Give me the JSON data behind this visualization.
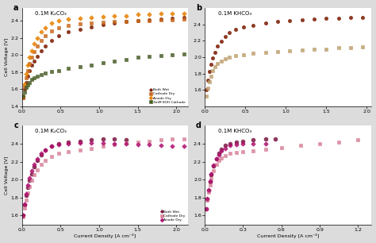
{
  "panels": [
    {
      "label": "a",
      "title": "0.1M K₂CO₃",
      "xlim": [
        0,
        2.15
      ],
      "ylim": [
        1.4,
        2.55
      ],
      "yticks": [
        1.4,
        1.6,
        1.8,
        2.0,
        2.2,
        2.4
      ],
      "xticks": [
        0.0,
        0.5,
        1.0,
        1.5,
        2.0
      ],
      "has_legend": true,
      "legend_loc": "lower right",
      "series": [
        {
          "label": "Both Wet",
          "marker": "o",
          "color": "#7B1A00",
          "mec": "#7B1A00",
          "markersize": 3.0,
          "x": [
            0.02,
            0.04,
            0.06,
            0.08,
            0.1,
            0.13,
            0.16,
            0.2,
            0.25,
            0.3,
            0.38,
            0.48,
            0.6,
            0.75,
            0.9,
            1.05,
            1.2,
            1.35,
            1.5,
            1.65,
            1.8,
            1.95,
            2.1
          ],
          "y": [
            1.5,
            1.6,
            1.68,
            1.75,
            1.82,
            1.88,
            1.93,
            1.98,
            2.05,
            2.1,
            2.17,
            2.22,
            2.27,
            2.3,
            2.33,
            2.35,
            2.37,
            2.39,
            2.4,
            2.41,
            2.42,
            2.43,
            2.44
          ]
        },
        {
          "label": "Cathode Dry",
          "marker": "s",
          "color": "#C8691E",
          "mec": "#C8691E",
          "markersize": 3.0,
          "x": [
            0.02,
            0.04,
            0.06,
            0.08,
            0.1,
            0.13,
            0.16,
            0.2,
            0.25,
            0.3,
            0.38,
            0.48,
            0.6,
            0.75,
            0.9,
            1.05,
            1.2,
            1.35,
            1.5,
            1.65,
            1.8,
            1.95,
            2.1
          ],
          "y": [
            1.5,
            1.63,
            1.73,
            1.82,
            1.9,
            1.97,
            2.04,
            2.1,
            2.17,
            2.22,
            2.28,
            2.32,
            2.34,
            2.36,
            2.37,
            2.38,
            2.39,
            2.39,
            2.4,
            2.4,
            2.41,
            2.41,
            2.42
          ]
        },
        {
          "label": "Anode Dry",
          "marker": "D",
          "color": "#E88000",
          "mec": "#E88000",
          "markersize": 2.8,
          "x": [
            0.02,
            0.04,
            0.06,
            0.08,
            0.1,
            0.13,
            0.16,
            0.2,
            0.25,
            0.3,
            0.38,
            0.48,
            0.6,
            0.75,
            0.9,
            1.05,
            1.2,
            1.35,
            1.5,
            1.65,
            1.8,
            1.95,
            2.1
          ],
          "y": [
            1.52,
            1.66,
            1.78,
            1.88,
            1.97,
            2.05,
            2.13,
            2.2,
            2.27,
            2.32,
            2.37,
            2.4,
            2.42,
            2.43,
            2.44,
            2.45,
            2.46,
            2.46,
            2.47,
            2.47,
            2.48,
            2.48,
            2.48
          ]
        },
        {
          "label": "3mM KOH Cathode",
          "marker": "s",
          "color": "#4A5E28",
          "mec": "#4A5E28",
          "markersize": 3.0,
          "x": [
            0.02,
            0.04,
            0.06,
            0.08,
            0.1,
            0.13,
            0.16,
            0.2,
            0.25,
            0.3,
            0.38,
            0.48,
            0.6,
            0.75,
            0.9,
            1.05,
            1.2,
            1.35,
            1.5,
            1.65,
            1.8,
            1.95,
            2.1
          ],
          "y": [
            1.52,
            1.57,
            1.62,
            1.65,
            1.68,
            1.71,
            1.73,
            1.75,
            1.77,
            1.79,
            1.81,
            1.82,
            1.84,
            1.86,
            1.88,
            1.91,
            1.93,
            1.95,
            1.97,
            1.98,
            1.99,
            2.0,
            2.01
          ]
        }
      ]
    },
    {
      "label": "b",
      "title": "0.1M KHCO₃",
      "xlim": [
        0,
        2.05
      ],
      "ylim": [
        1.4,
        2.6
      ],
      "yticks": [
        1.6,
        1.8,
        2.0,
        2.2,
        2.4
      ],
      "xticks": [
        0.0,
        0.5,
        1.0,
        1.5,
        2.0
      ],
      "has_legend": false,
      "series": [
        {
          "label": "Both Wet",
          "marker": "o",
          "color": "#7B1A00",
          "mec": "#7B1A00",
          "markersize": 3.0,
          "x": [
            0.02,
            0.04,
            0.06,
            0.08,
            0.1,
            0.13,
            0.16,
            0.2,
            0.25,
            0.3,
            0.38,
            0.48,
            0.6,
            0.75,
            0.9,
            1.05,
            1.2,
            1.35,
            1.5,
            1.65,
            1.8,
            1.95
          ],
          "y": [
            1.6,
            1.72,
            1.82,
            1.91,
            1.99,
            2.06,
            2.13,
            2.19,
            2.25,
            2.3,
            2.34,
            2.37,
            2.39,
            2.41,
            2.43,
            2.44,
            2.45,
            2.46,
            2.47,
            2.47,
            2.48,
            2.48
          ]
        },
        {
          "label": "Cathode Dry",
          "marker": "s",
          "color": "#BEA070",
          "mec": "#BEA070",
          "markersize": 3.0,
          "x": [
            0.02,
            0.04,
            0.06,
            0.08,
            0.1,
            0.13,
            0.16,
            0.2,
            0.25,
            0.3,
            0.38,
            0.48,
            0.6,
            0.75,
            0.9,
            1.05,
            1.2,
            1.35,
            1.5,
            1.65,
            1.8,
            1.95
          ],
          "y": [
            1.52,
            1.62,
            1.7,
            1.77,
            1.83,
            1.88,
            1.92,
            1.95,
            1.98,
            2.0,
            2.02,
            2.03,
            2.05,
            2.06,
            2.07,
            2.08,
            2.09,
            2.1,
            2.1,
            2.11,
            2.11,
            2.12
          ]
        }
      ]
    },
    {
      "label": "c",
      "title": "0.1M K₂CO₃",
      "xlim": [
        0,
        2.15
      ],
      "ylim": [
        1.5,
        2.6
      ],
      "yticks": [
        1.6,
        1.8,
        2.0,
        2.2,
        2.4
      ],
      "xticks": [
        0.0,
        0.5,
        1.0,
        1.5,
        2.0
      ],
      "has_legend": true,
      "legend_loc": "lower right",
      "series": [
        {
          "label": "Both Wet",
          "marker": "o",
          "color": "#7B1540",
          "mec": "#7B1540",
          "markersize": 3.5,
          "x": [
            0.02,
            0.04,
            0.06,
            0.08,
            0.1,
            0.13,
            0.16,
            0.2,
            0.25,
            0.3,
            0.38,
            0.48,
            0.6,
            0.75,
            0.9,
            1.05,
            1.2,
            1.35
          ],
          "y": [
            1.6,
            1.72,
            1.82,
            1.91,
            1.99,
            2.06,
            2.14,
            2.21,
            2.28,
            2.33,
            2.37,
            2.4,
            2.42,
            2.43,
            2.44,
            2.45,
            2.45,
            2.44
          ]
        },
        {
          "label": "Cathode Dry",
          "marker": "s",
          "color": "#D8849A",
          "mec": "#D8849A",
          "markersize": 3.0,
          "x": [
            0.02,
            0.04,
            0.06,
            0.08,
            0.1,
            0.13,
            0.16,
            0.2,
            0.25,
            0.3,
            0.38,
            0.48,
            0.6,
            0.75,
            0.9,
            1.05,
            1.2,
            1.35,
            1.5,
            1.65,
            1.8,
            1.95,
            2.1
          ],
          "y": [
            1.58,
            1.68,
            1.77,
            1.85,
            1.92,
            1.99,
            2.05,
            2.11,
            2.17,
            2.21,
            2.26,
            2.29,
            2.31,
            2.33,
            2.35,
            2.37,
            2.39,
            2.41,
            2.42,
            2.43,
            2.44,
            2.45,
            2.45
          ]
        },
        {
          "label": "Anode Dry",
          "marker": "D",
          "color": "#B01070",
          "mec": "#B01070",
          "markersize": 2.8,
          "x": [
            0.02,
            0.04,
            0.06,
            0.08,
            0.1,
            0.13,
            0.16,
            0.2,
            0.25,
            0.3,
            0.38,
            0.48,
            0.6,
            0.75,
            0.9,
            1.05,
            1.2,
            1.35,
            1.5,
            1.65,
            1.8,
            1.95,
            2.1
          ],
          "y": [
            1.6,
            1.73,
            1.84,
            1.94,
            2.02,
            2.1,
            2.17,
            2.23,
            2.29,
            2.33,
            2.37,
            2.39,
            2.4,
            2.41,
            2.41,
            2.41,
            2.4,
            2.4,
            2.39,
            2.39,
            2.38,
            2.37,
            2.37
          ]
        }
      ]
    },
    {
      "label": "d",
      "title": "0.1M KHCO₃",
      "xlim": [
        0,
        1.3
      ],
      "ylim": [
        1.5,
        2.6
      ],
      "yticks": [
        1.6,
        1.8,
        2.0,
        2.2,
        2.4
      ],
      "xticks": [
        0.0,
        0.3,
        0.6,
        0.9,
        1.2
      ],
      "has_legend": false,
      "series": [
        {
          "label": "Both Wet",
          "marker": "o",
          "color": "#7B1540",
          "mec": "#7B1540",
          "markersize": 3.5,
          "x": [
            0.01,
            0.02,
            0.03,
            0.04,
            0.05,
            0.07,
            0.09,
            0.11,
            0.13,
            0.16,
            0.2,
            0.25,
            0.3,
            0.38,
            0.48,
            0.55
          ],
          "y": [
            1.67,
            1.78,
            1.88,
            1.97,
            2.05,
            2.15,
            2.23,
            2.29,
            2.34,
            2.38,
            2.4,
            2.42,
            2.43,
            2.44,
            2.45,
            2.45
          ]
        },
        {
          "label": "Cathode Dry",
          "marker": "s",
          "color": "#D8849A",
          "mec": "#D8849A",
          "markersize": 3.0,
          "x": [
            0.01,
            0.02,
            0.03,
            0.04,
            0.05,
            0.07,
            0.09,
            0.11,
            0.13,
            0.16,
            0.2,
            0.25,
            0.3,
            0.38,
            0.48,
            0.6,
            0.75,
            0.9,
            1.05,
            1.2
          ],
          "y": [
            1.67,
            1.77,
            1.86,
            1.94,
            2.01,
            2.1,
            2.17,
            2.21,
            2.24,
            2.27,
            2.29,
            2.3,
            2.31,
            2.32,
            2.34,
            2.36,
            2.38,
            2.4,
            2.42,
            2.44
          ]
        },
        {
          "label": "Anode Dry",
          "marker": "D",
          "color": "#B01070",
          "mec": "#B01070",
          "markersize": 2.8,
          "x": [
            0.01,
            0.02,
            0.03,
            0.04,
            0.05,
            0.07,
            0.09,
            0.11,
            0.13,
            0.16,
            0.2,
            0.25,
            0.3,
            0.38,
            0.48
          ],
          "y": [
            1.67,
            1.79,
            1.89,
            1.98,
            2.06,
            2.16,
            2.23,
            2.28,
            2.32,
            2.35,
            2.38,
            2.39,
            2.4,
            2.4,
            2.4
          ]
        }
      ]
    }
  ],
  "legend_a": [
    {
      "label": "Both Wet",
      "marker": "o",
      "color": "#7B1A00"
    },
    {
      "label": "Cathode Dry",
      "marker": "s",
      "color": "#C8691E"
    },
    {
      "label": "Anode Dry",
      "marker": "D",
      "color": "#E88000"
    },
    {
      "label": "3mM KOH Cathode",
      "marker": "s",
      "color": "#4A5E28"
    }
  ],
  "legend_c": [
    {
      "label": "Both Wet",
      "marker": "o",
      "color": "#7B1540"
    },
    {
      "label": "Cathode Dry",
      "marker": "s",
      "color": "#D8849A"
    },
    {
      "label": "Anode Dry",
      "marker": "D",
      "color": "#B01070"
    }
  ],
  "ylabel": "Cell Voltage [V]",
  "xlabel": "Current Density [A cm⁻²]",
  "bg_color": "#DCDCDC",
  "plot_bg": "#FFFFFF"
}
